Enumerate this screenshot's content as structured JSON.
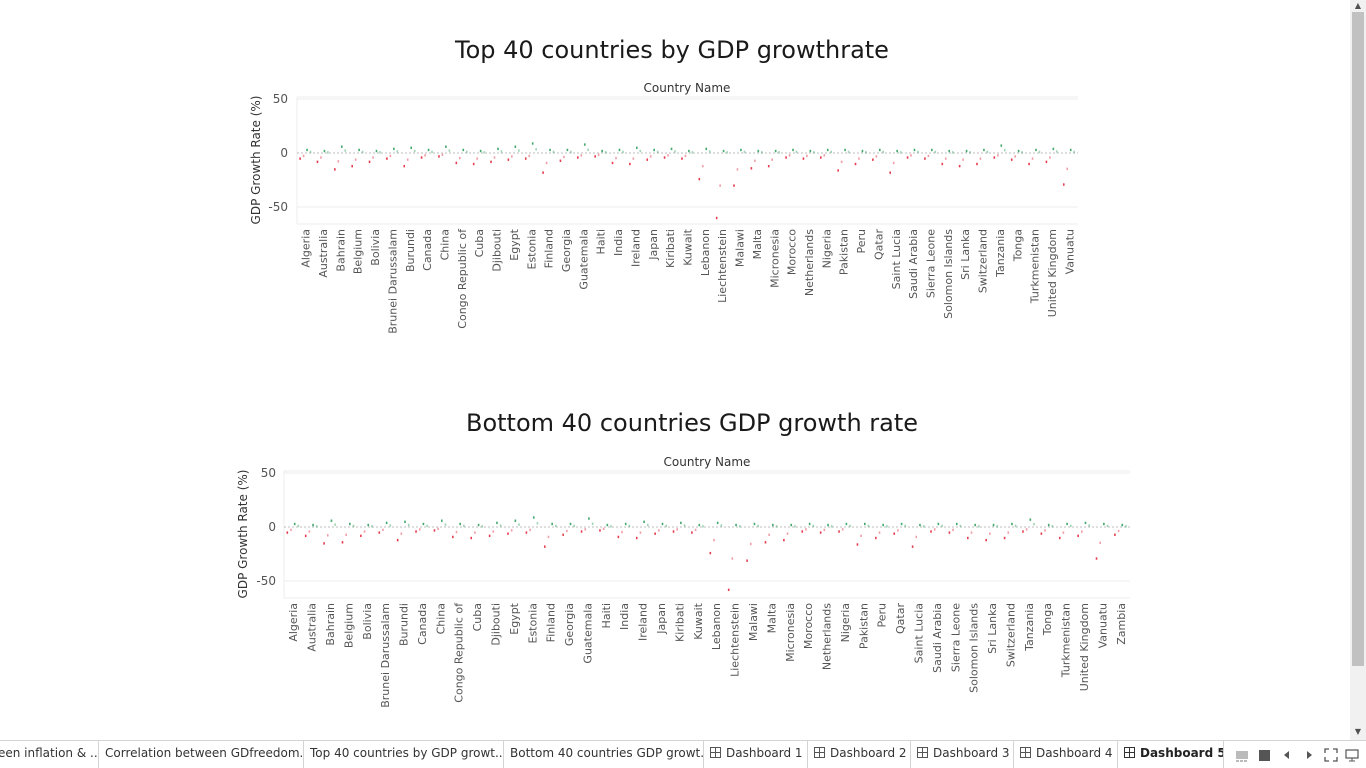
{
  "charts": [
    {
      "title": "Top 40 countries by GDP growthrate",
      "header": "Country Name",
      "ylabel": "GDP Growth Rate (%)",
      "ticks": [
        "50",
        "0",
        "-50"
      ]
    },
    {
      "title": "Bottom 40 countries GDP growth rate",
      "header": "Country Name",
      "ylabel": "GDP Growth Rate (%)",
      "ticks": [
        "50",
        "0",
        "-50"
      ]
    }
  ],
  "chart_data": [
    {
      "type": "scatter",
      "title": "Top 40 countries by GDP growthrate",
      "xlabel": "Country Name",
      "ylabel": "GDP Growth Rate (%)",
      "ylim": [
        -60,
        55
      ],
      "categories": [
        "Algeria",
        "Australia",
        "Bahrain",
        "Belgium",
        "Bolivia",
        "Brunei Darussalam",
        "Burundi",
        "Canada",
        "China",
        "Congo Republic of",
        "Cuba",
        "Djibouti",
        "Egypt",
        "Estonia",
        "Finland",
        "Georgia",
        "Guatemala",
        "Haiti",
        "India",
        "Ireland",
        "Japan",
        "Kiribati",
        "Kuwait",
        "Lebanon",
        "Liechtenstein",
        "Malawi",
        "Malta",
        "Micronesia",
        "Morocco",
        "Netherlands",
        "Nigeria",
        "Pakistan",
        "Peru",
        "Qatar",
        "Saint Lucia",
        "Saudi Arabia",
        "Sierra Leone",
        "Solomon Islands",
        "Sri Lanka",
        "Switzerland",
        "Tanzania",
        "Tonga",
        "Turkmenistan",
        "United Kingdom",
        "Vanuatu"
      ],
      "min_values": [
        -5,
        -8,
        -15,
        -12,
        -8,
        -5,
        -12,
        -4,
        -3,
        -9,
        -10,
        -8,
        -6,
        -5,
        -18,
        -7,
        -4,
        -3,
        -9,
        -10,
        -6,
        -4,
        -5,
        -24,
        -60,
        -30,
        -14,
        -12,
        -4,
        -5,
        -4,
        -16,
        -10,
        -6,
        -18,
        -4,
        -5,
        -10,
        -12,
        -10,
        -4,
        -6,
        -10,
        -8,
        -29
      ],
      "max_values": [
        3,
        2,
        6,
        3,
        2,
        4,
        5,
        3,
        6,
        3,
        2,
        4,
        6,
        9,
        3,
        3,
        8,
        2,
        3,
        5,
        3,
        4,
        2,
        4,
        2,
        3,
        2,
        2,
        3,
        2,
        3,
        3,
        2,
        3,
        2,
        3,
        3,
        2,
        2,
        3,
        7,
        2,
        3,
        4,
        3
      ],
      "grid": true
    },
    {
      "type": "scatter",
      "title": "Bottom 40 countries GDP growth rate",
      "xlabel": "Country Name",
      "ylabel": "GDP Growth Rate (%)",
      "ylim": [
        -60,
        55
      ],
      "categories": [
        "Algeria",
        "Australia",
        "Bahrain",
        "Belgium",
        "Bolivia",
        "Brunei Darussalam",
        "Burundi",
        "Canada",
        "China",
        "Congo Republic of",
        "Cuba",
        "Djibouti",
        "Egypt",
        "Estonia",
        "Finland",
        "Georgia",
        "Guatemala",
        "Haiti",
        "India",
        "Ireland",
        "Japan",
        "Kiribati",
        "Kuwait",
        "Lebanon",
        "Liechtenstein",
        "Malawi",
        "Malta",
        "Micronesia",
        "Morocco",
        "Netherlands",
        "Nigeria",
        "Pakistan",
        "Peru",
        "Qatar",
        "Saint Lucia",
        "Saudi Arabia",
        "Sierra Leone",
        "Solomon Islands",
        "Sri Lanka",
        "Switzerland",
        "Tanzania",
        "Tonga",
        "Turkmenistan",
        "United Kingdom",
        "Vanuatu",
        "Zambia"
      ],
      "min_values": [
        -5,
        -8,
        -15,
        -14,
        -8,
        -5,
        -12,
        -4,
        -3,
        -9,
        -10,
        -8,
        -6,
        -5,
        -18,
        -7,
        -4,
        -3,
        -9,
        -10,
        -6,
        -4,
        -5,
        -24,
        -58,
        -31,
        -14,
        -12,
        -4,
        -5,
        -4,
        -16,
        -10,
        -6,
        -18,
        -4,
        -5,
        -10,
        -12,
        -10,
        -4,
        -6,
        -10,
        -8,
        -29,
        -7
      ],
      "max_values": [
        3,
        2,
        6,
        3,
        2,
        4,
        5,
        3,
        6,
        3,
        2,
        4,
        6,
        9,
        3,
        3,
        8,
        2,
        3,
        5,
        3,
        4,
        2,
        4,
        2,
        3,
        2,
        2,
        3,
        2,
        3,
        3,
        2,
        3,
        2,
        3,
        3,
        2,
        2,
        3,
        7,
        2,
        3,
        4,
        3,
        2
      ],
      "grid": true
    }
  ],
  "colors": {
    "positive": "#2e9e5b",
    "negative": "#e3273d",
    "axis": "#8a8a8a",
    "grid": "#ececec"
  },
  "tabs": [
    {
      "label": "een inflation & ...",
      "icon": ""
    },
    {
      "label": "Correlation between GDfreedom...",
      "icon": ""
    },
    {
      "label": "Top 40 countries by GDP growt...",
      "icon": ""
    },
    {
      "label": "Bottom 40 countries GDP growt...",
      "icon": ""
    },
    {
      "label": "Dashboard 1",
      "icon": "dashboard-icon"
    },
    {
      "label": "Dashboard 2",
      "icon": "dashboard-icon"
    },
    {
      "label": "Dashboard 3",
      "icon": "dashboard-icon"
    },
    {
      "label": "Dashboard 4",
      "icon": "dashboard-icon"
    },
    {
      "label": "Dashboard 5",
      "icon": "dashboard-icon",
      "active": true
    }
  ],
  "tab_controls": [
    "show-filmstrip-icon",
    "show-tabs-icon",
    "prev-tab-icon",
    "next-tab-icon",
    "fullscreen-icon",
    "presentation-icon"
  ]
}
